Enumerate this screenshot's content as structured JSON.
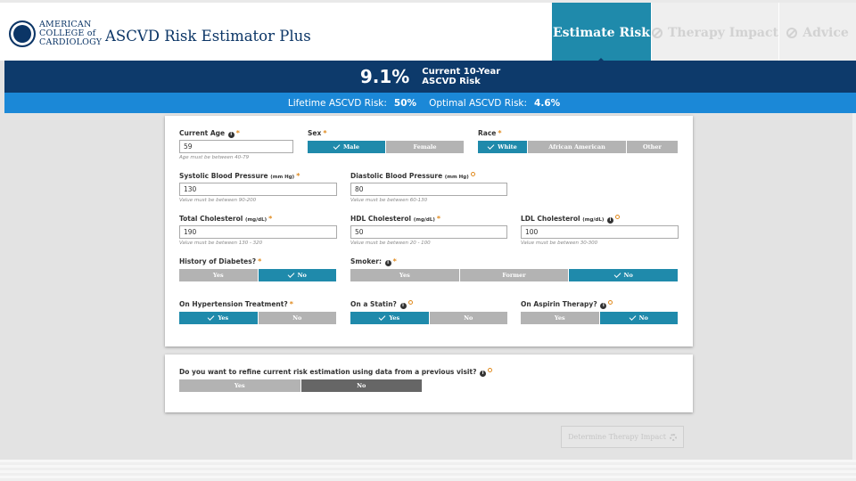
{
  "header": {
    "logo_lines": [
      "AMERICAN",
      "COLLEGE of",
      "CARDIOLOGY"
    ],
    "app_title": "ASCVD Risk Estimator Plus",
    "tabs": [
      {
        "label": "Estimate Risk",
        "active": true
      },
      {
        "label": "Therapy Impact",
        "active": false
      },
      {
        "label": "Advice",
        "active": false
      }
    ]
  },
  "risk": {
    "percent": "9.1%",
    "label_line1": "Current 10-Year",
    "label_line2": "ASCVD Risk",
    "lifetime_label": "Lifetime ASCVD Risk:",
    "lifetime_value": "50%",
    "optimal_label": "Optimal ASCVD Risk:",
    "optimal_value": "4.6%"
  },
  "form": {
    "age": {
      "label": "Current Age",
      "value": "59",
      "hint": "Age must be between 40-79"
    },
    "sex": {
      "label": "Sex",
      "options": [
        "Male",
        "Female"
      ],
      "selected": "Male"
    },
    "race": {
      "label": "Race",
      "options": [
        "White",
        "African American",
        "Other"
      ],
      "selected": "White"
    },
    "systolic": {
      "label": "Systolic Blood Pressure",
      "unit": "(mm Hg)",
      "value": "130",
      "hint": "Value must be between 90-200"
    },
    "diastolic": {
      "label": "Diastolic Blood Pressure",
      "unit": "(mm Hg)",
      "value": "80",
      "hint": "Value must be between 60-130"
    },
    "total_chol": {
      "label": "Total Cholesterol",
      "unit": "(mg/dL)",
      "value": "190",
      "hint": "Value must be between 130 - 320"
    },
    "hdl": {
      "label": "HDL Cholesterol",
      "unit": "(mg/dL)",
      "value": "50",
      "hint": "Value must be between 20 - 100"
    },
    "ldl": {
      "label": "LDL Cholesterol",
      "unit": "(mg/dL)",
      "value": "100",
      "hint": "Value must be between 30-300"
    },
    "diabetes": {
      "label": "History of Diabetes?",
      "options": [
        "Yes",
        "No"
      ],
      "selected": "No"
    },
    "smoker": {
      "label": "Smoker:",
      "options": [
        "Yes",
        "Former",
        "No"
      ],
      "selected": "No"
    },
    "hypertension": {
      "label": "On Hypertension Treatment?",
      "options": [
        "Yes",
        "No"
      ],
      "selected": "Yes"
    },
    "statin": {
      "label": "On a Statin?",
      "options": [
        "Yes",
        "No"
      ],
      "selected": "Yes"
    },
    "aspirin": {
      "label": "On Aspirin Therapy?",
      "options": [
        "Yes",
        "No"
      ],
      "selected": "No"
    }
  },
  "refine": {
    "question": "Do you want to refine current risk estimation using data from a previous visit?",
    "options": [
      "Yes",
      "No"
    ],
    "selected": "No"
  },
  "actions": {
    "determine_label": "Determine Therapy Impact"
  },
  "colors": {
    "navy": "#0d3a6b",
    "teal": "#1f8aab",
    "blue": "#1b88d7",
    "orange": "#e08a1e"
  }
}
